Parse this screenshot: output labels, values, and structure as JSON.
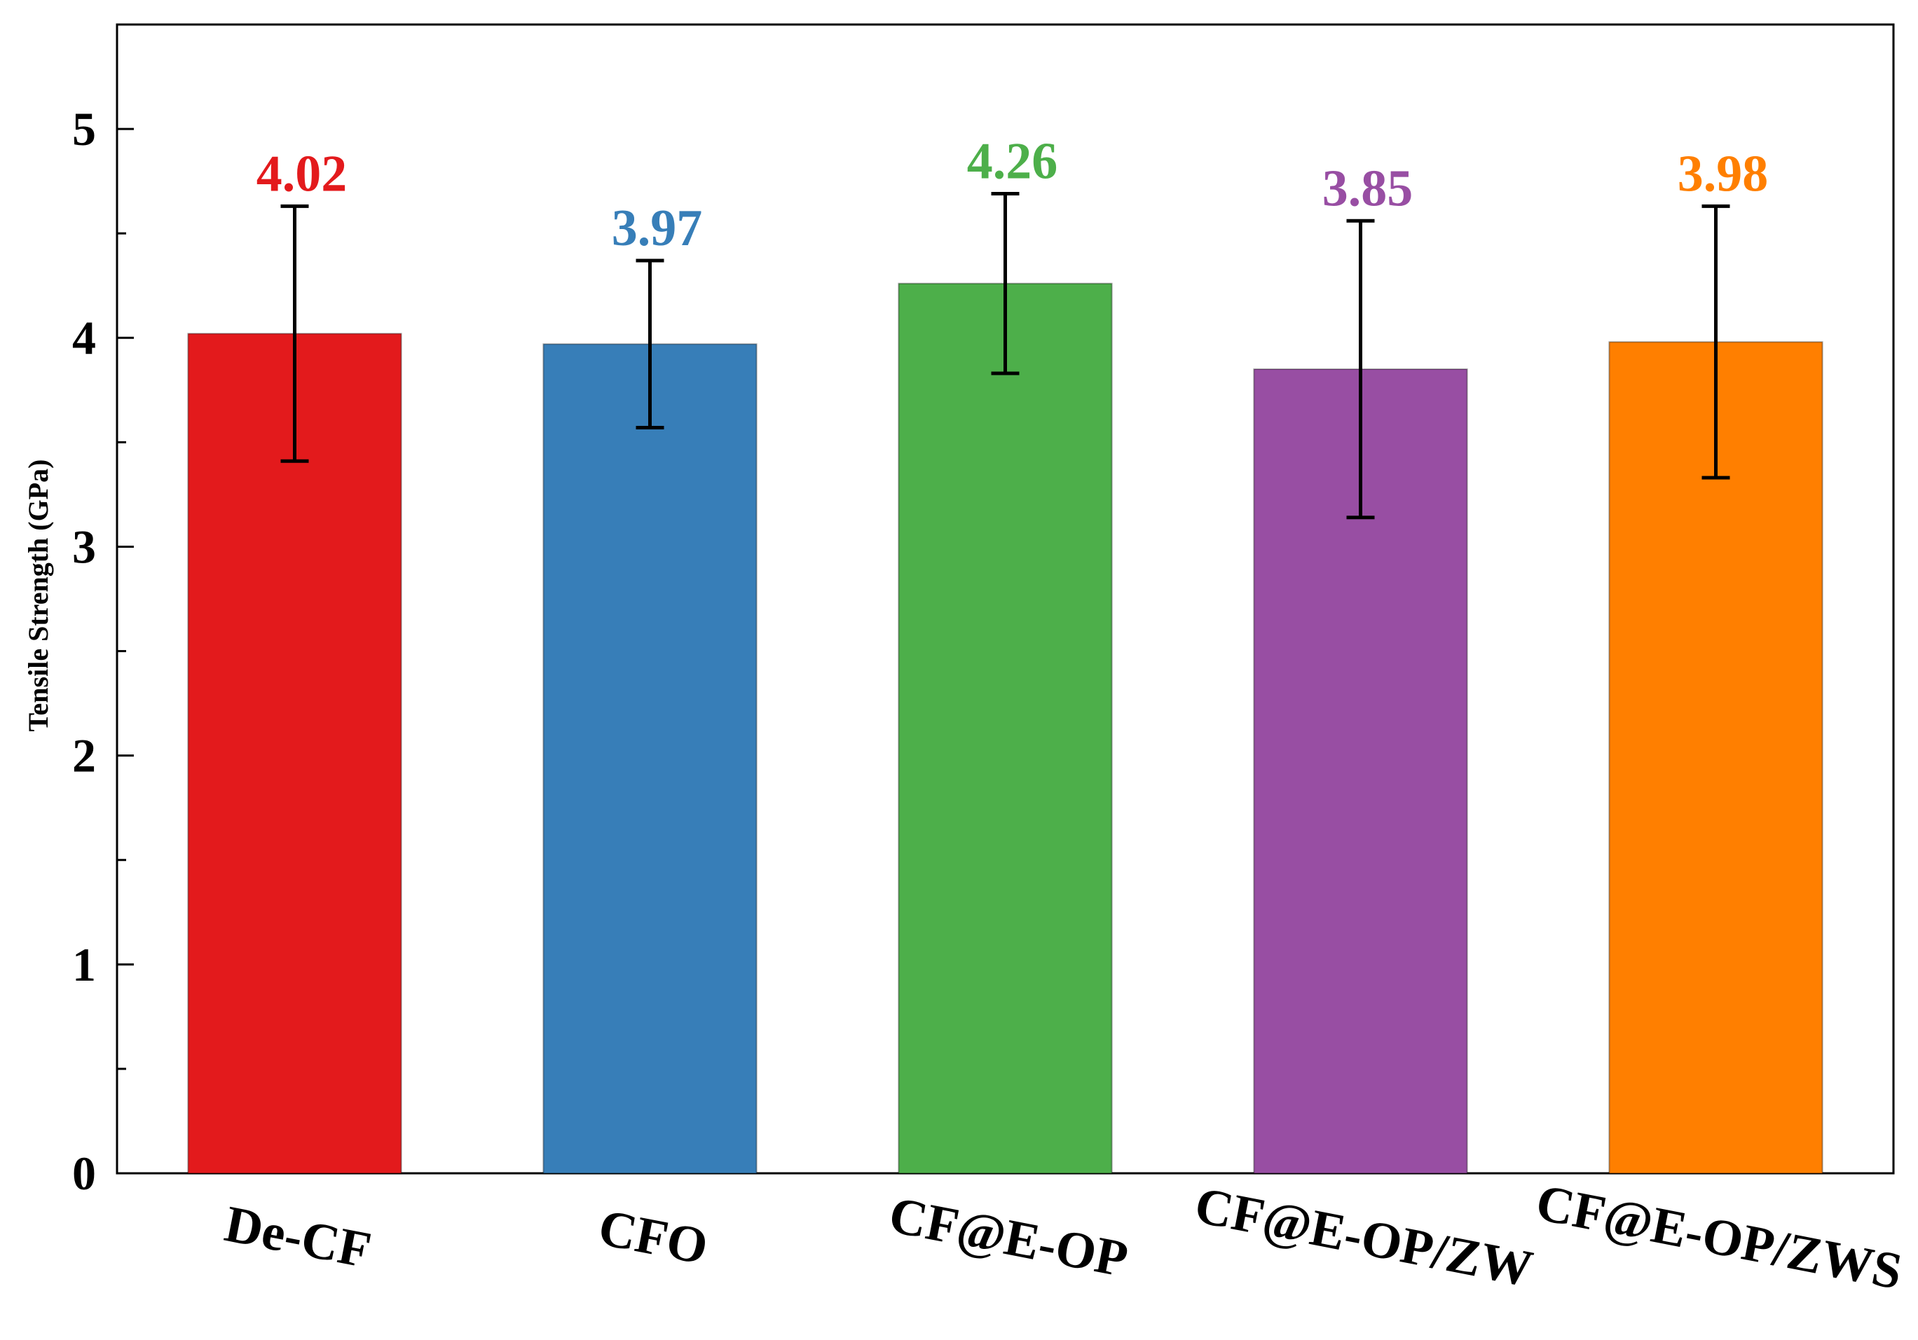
{
  "chart_data": {
    "type": "bar",
    "title": "",
    "xlabel": "",
    "ylabel": "Tensile Strength (GPa)",
    "ylim": [
      0,
      5.5
    ],
    "yticks": [
      0,
      1,
      2,
      3,
      4,
      5
    ],
    "ytick_labels": [
      "0",
      "1",
      "2",
      "3",
      "4",
      "5"
    ],
    "categories": [
      "De-CF",
      "CFO",
      "CF@E-OP",
      "CF@E-OP/ZW",
      "CF@E-OP/ZWS"
    ],
    "values": [
      4.02,
      3.97,
      4.26,
      3.85,
      3.98
    ],
    "value_labels": [
      "4.02",
      "3.97",
      "4.26",
      "3.85",
      "3.98"
    ],
    "errors": [
      0.61,
      0.4,
      0.43,
      0.71,
      0.65
    ],
    "colors": [
      "#e31a1c",
      "#377eb8",
      "#4daf4a",
      "#984ea3",
      "#ff7f00"
    ],
    "grid": false,
    "legend": "none"
  }
}
